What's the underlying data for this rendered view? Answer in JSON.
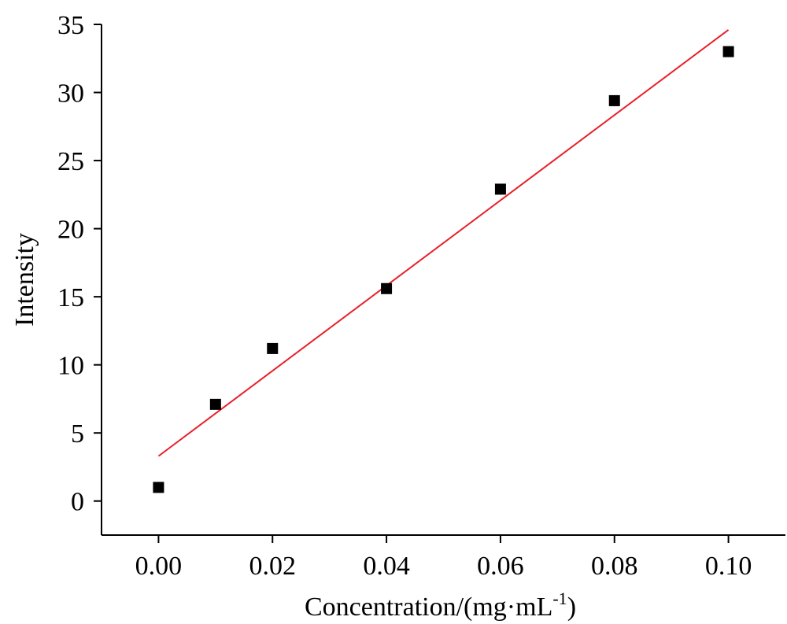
{
  "chart_data": {
    "type": "scatter",
    "xlabel": "Concentration/(mg·mL",
    "xlabel_sup": "-1",
    "xlabel_end": ")",
    "ylabel": "Intensity",
    "xlim": [
      -0.01,
      0.11
    ],
    "ylim": [
      -2.5,
      35
    ],
    "x_ticks": [
      0.0,
      0.02,
      0.04,
      0.06,
      0.08,
      0.1
    ],
    "x_tick_labels": [
      "0.00",
      "0.02",
      "0.04",
      "0.06",
      "0.08",
      "0.10"
    ],
    "y_ticks": [
      0,
      5,
      10,
      15,
      20,
      25,
      30,
      35
    ],
    "y_tick_labels": [
      "0",
      "5",
      "10",
      "15",
      "20",
      "25",
      "30",
      "35"
    ],
    "grid": false,
    "series": [
      {
        "type": "scatter",
        "marker": "square",
        "x": [
          0.0,
          0.01,
          0.02,
          0.04,
          0.06,
          0.08,
          0.1
        ],
        "y": [
          1.0,
          7.1,
          11.2,
          15.6,
          22.9,
          29.4,
          33.0
        ]
      }
    ],
    "fit_line": {
      "x": [
        0.0,
        0.1
      ],
      "y": [
        3.3,
        34.6
      ]
    },
    "colors": {
      "points": "#000000",
      "fit_line": "#e8202a",
      "axes": "#000000"
    }
  }
}
